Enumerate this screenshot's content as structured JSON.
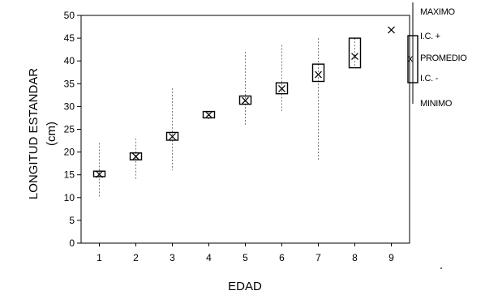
{
  "chart_data": {
    "type": "boxplot",
    "title": "",
    "xlabel": "EDAD",
    "ylabel_line1": "LONGITUD ESTANDAR",
    "ylabel_line2": "(cm)",
    "xlim": [
      0.5,
      9.5
    ],
    "ylim": [
      0,
      50
    ],
    "x_ticks": [
      "1",
      "2",
      "3",
      "4",
      "5",
      "6",
      "7",
      "8",
      "9"
    ],
    "y_ticks": [
      "0",
      "5",
      "10",
      "15",
      "20",
      "25",
      "30",
      "35",
      "40",
      "45",
      "50"
    ],
    "grid": false,
    "groups": [
      {
        "edad": "1",
        "min": 10,
        "ci_low": 14.6,
        "mean": 15.1,
        "ci_high": 15.8,
        "max": 22
      },
      {
        "edad": "2",
        "min": 14,
        "ci_low": 18.3,
        "mean": 19.0,
        "ci_high": 19.8,
        "max": 23
      },
      {
        "edad": "3",
        "min": 16,
        "ci_low": 22.6,
        "mean": 23.4,
        "ci_high": 24.3,
        "max": 34
      },
      {
        "edad": "4",
        "min": 27,
        "ci_low": 27.5,
        "mean": 28.2,
        "ci_high": 28.9,
        "max": 29
      },
      {
        "edad": "5",
        "min": 26,
        "ci_low": 30.5,
        "mean": 31.3,
        "ci_high": 32.3,
        "max": 42
      },
      {
        "edad": "6",
        "min": 29,
        "ci_low": 32.8,
        "mean": 33.9,
        "ci_high": 35.2,
        "max": 43.5
      },
      {
        "edad": "7",
        "min": 18,
        "ci_low": 35.5,
        "mean": 37.0,
        "ci_high": 39.3,
        "max": 45
      },
      {
        "edad": "8",
        "min": 38.5,
        "ci_low": 38.5,
        "mean": 41.0,
        "ci_high": 45.0,
        "max": 45
      },
      {
        "edad": "9",
        "min": 46.8,
        "ci_low": 46.8,
        "mean": 46.8,
        "ci_high": 46.8,
        "max": 46.8
      }
    ],
    "legend": {
      "position": "right",
      "labels": {
        "max": "MAXIMO",
        "ci_high": "I.C. +",
        "mean": "PROMEDIO",
        "ci_low": "I.C. -",
        "min": "MINIMO"
      }
    }
  }
}
